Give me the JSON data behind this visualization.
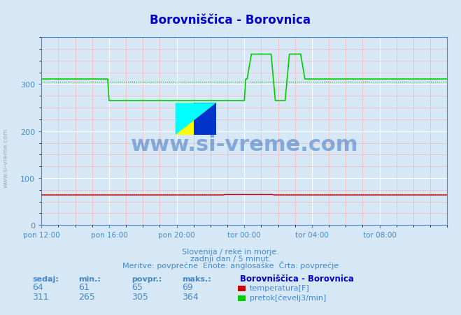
{
  "title": "Borovniščica - Borovnica",
  "title_color": "#0000cc",
  "bg_color": "#d6e8f5",
  "plot_bg_color": "#d6e8f5",
  "grid_major_color": "#ffffff",
  "grid_minor_color": "#ffaaaa",
  "xlabel_ticks": [
    "pon 12:00",
    "pon 16:00",
    "pon 20:00",
    "tor 00:00",
    "tor 04:00",
    "tor 08:00"
  ],
  "yticks": [
    0,
    100,
    200,
    300
  ],
  "ymin": 0,
  "ymax": 400,
  "xmin": 0,
  "xmax": 288,
  "temp_color": "#cc0000",
  "flow_color": "#00cc00",
  "avg_temp_color": "#cc0000",
  "avg_flow_color": "#009900",
  "footer_line1": "Slovenija / reke in morje.",
  "footer_line2": "zadnji dan / 5 minut.",
  "footer_line3": "Meritve: povprečne  Enote: anglosaške  Črta: povprečje",
  "footer_color": "#4488cc",
  "table_headers": [
    "sedaj:",
    "min.:",
    "povpr.:",
    "maks.:"
  ],
  "table_color": "#4488cc",
  "legend_title": "Borovniščica - Borovnica",
  "legend_color": "#0000cc",
  "temp_sedaj": 64,
  "temp_min": 61,
  "temp_povpr": 65,
  "temp_maks": 69,
  "flow_sedaj": 311,
  "flow_min": 265,
  "flow_povpr": 305,
  "flow_maks": 364,
  "temp_label": "temperatura[F]",
  "flow_label": "pretok[čevelj3/min]",
  "watermark": "www.si-vreme.com",
  "watermark_color": "#1a5eb8",
  "tick_color": "#4488cc",
  "axis_color": "#4488cc",
  "side_text": "www.si-vreme.com",
  "side_text_color": "#aaaaaa"
}
